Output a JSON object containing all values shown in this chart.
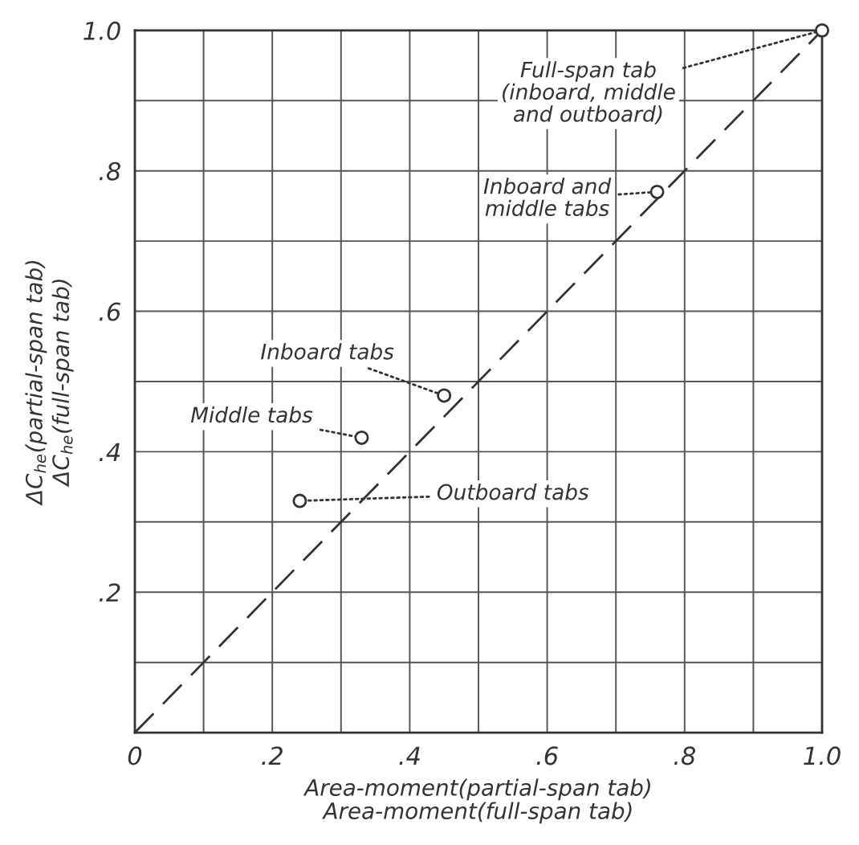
{
  "chart_data": {
    "type": "scatter",
    "xlabel": "Area-moment(partial-span tab)\nArea-moment(full-span tab)",
    "ylabel": "ΔC$_{he}$(partial-span tab)\nΔC$_{he}$(full-span tab)",
    "xlim": [
      0,
      1.0
    ],
    "ylim": [
      0,
      1.0
    ],
    "xticks": [
      0,
      {
        "value": 0.1,
        "label": null
      },
      {
        "value": 0.2,
        "label": ".2"
      },
      {
        "value": 0.3,
        "label": null
      },
      {
        "value": 0.4,
        "label": ".4"
      },
      {
        "value": 0.5,
        "label": null
      },
      {
        "value": 0.6,
        "label": ".6"
      },
      {
        "value": 0.7,
        "label": null
      },
      {
        "value": 0.8,
        "label": ".8"
      },
      {
        "value": 0.9,
        "label": null
      },
      {
        "value": 1.0,
        "label": "1.0"
      }
    ],
    "yticks": [
      {
        "value": 0,
        "label": null
      },
      {
        "value": 0.1,
        "label": null
      },
      {
        "value": 0.2,
        "label": ".2"
      },
      {
        "value": 0.3,
        "label": null
      },
      {
        "value": 0.4,
        "label": ".4"
      },
      {
        "value": 0.5,
        "label": null
      },
      {
        "value": 0.6,
        "label": ".6"
      },
      {
        "value": 0.7,
        "label": null
      },
      {
        "value": 0.8,
        "label": ".8"
      },
      {
        "value": 0.9,
        "label": null
      },
      {
        "value": 1.0,
        "label": "1.0"
      }
    ],
    "grid": true,
    "series": [
      {
        "color": "#333333",
        "marker": "circle",
        "x": [
          1.0,
          0.76,
          0.45,
          0.33,
          0.24
        ],
        "values": [
          1.0,
          0.77,
          0.48,
          0.42,
          0.33
        ]
      },
      {
        "type": "line",
        "color": "#333333",
        "line_style": "dashed",
        "marker": "none",
        "x": [
          0,
          1.0
        ],
        "values": [
          0,
          1.0
        ]
      }
    ],
    "annotations": [
      {
        "text": "Full-span tab\n(inboard, middle\nand outboard)",
        "x": 1.0,
        "y": 1.0
      },
      {
        "text": "Inboard and\nmiddle tabs",
        "x": 0.76,
        "y": 0.77
      },
      {
        "text": "Inboard tabs",
        "x": 0.45,
        "y": 0.48
      },
      {
        "text": "Middle tabs",
        "x": 0.33,
        "y": 0.42
      },
      {
        "text": "Outboard tabs",
        "x": 0.24,
        "y": 0.33
      }
    ]
  }
}
